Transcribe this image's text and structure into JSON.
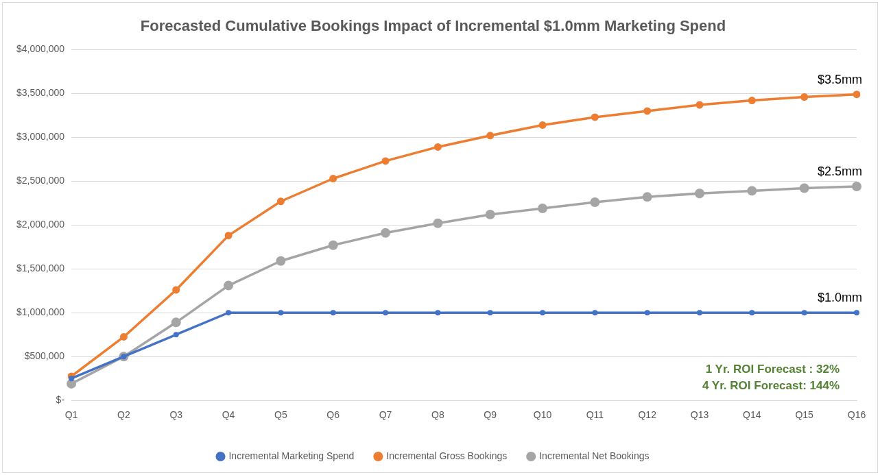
{
  "chart_data": {
    "type": "line",
    "title": "Forecasted Cumulative Bookings Impact of Incremental $1.0mm Marketing Spend",
    "categories": [
      "Q1",
      "Q2",
      "Q3",
      "Q4",
      "Q5",
      "Q6",
      "Q7",
      "Q8",
      "Q9",
      "Q10",
      "Q11",
      "Q12",
      "Q13",
      "Q14",
      "Q15",
      "Q16"
    ],
    "series": [
      {
        "name": "Incremental Marketing Spend",
        "color": "#4472c4",
        "values": [
          250000,
          500000,
          750000,
          1000000,
          1000000,
          1000000,
          1000000,
          1000000,
          1000000,
          1000000,
          1000000,
          1000000,
          1000000,
          1000000,
          1000000,
          1000000
        ]
      },
      {
        "name": "Incremental Gross Bookings",
        "color": "#ed7d31",
        "values": [
          275000,
          725000,
          1260000,
          1880000,
          2270000,
          2530000,
          2730000,
          2890000,
          3020000,
          3140000,
          3230000,
          3300000,
          3370000,
          3420000,
          3460000,
          3490000
        ]
      },
      {
        "name": "Incremental Net Bookings",
        "color": "#a5a5a5",
        "values": [
          190000,
          500000,
          890000,
          1310000,
          1590000,
          1770000,
          1910000,
          2020000,
          2120000,
          2190000,
          2260000,
          2320000,
          2360000,
          2390000,
          2420000,
          2440000
        ]
      }
    ],
    "ylim": [
      0,
      4000000
    ],
    "yticks": [
      {
        "value": 0,
        "label": "$-"
      },
      {
        "value": 500000,
        "label": "$500,000"
      },
      {
        "value": 1000000,
        "label": "$1,000,000"
      },
      {
        "value": 1500000,
        "label": "$1,500,000"
      },
      {
        "value": 2000000,
        "label": "$2,000,000"
      },
      {
        "value": 2500000,
        "label": "$2,500,000"
      },
      {
        "value": 3000000,
        "label": "$3,000,000"
      },
      {
        "value": 3500000,
        "label": "$3,500,000"
      },
      {
        "value": 4000000,
        "label": "$4,000,000"
      }
    ],
    "grid": "y",
    "legend": "bottom",
    "marker": "circle",
    "line_style": "solid",
    "annotations": [
      {
        "text": "$3.5mm",
        "x": "Q16",
        "y": 3490000
      },
      {
        "text": "$2.5mm",
        "x": "Q16",
        "y": 2440000
      },
      {
        "text": "$1.0mm",
        "x": "Q16",
        "y": 1000000
      },
      "1 Yr. ROI Forecast : 32%",
      "4 Yr. ROI Forecast: 144%"
    ]
  }
}
